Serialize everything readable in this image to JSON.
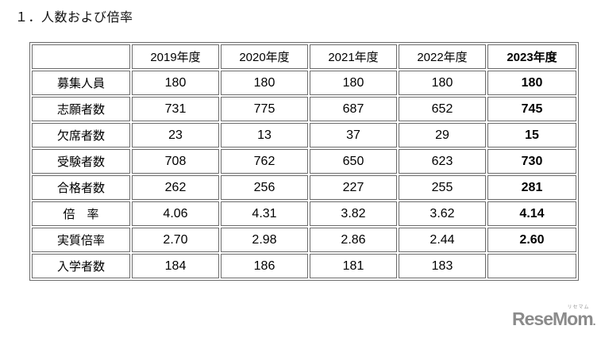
{
  "page": {
    "title": "１．人数および倍率"
  },
  "chart_data": {
    "type": "table",
    "title": "１．人数および倍率",
    "columns": [
      "",
      "2019年度",
      "2020年度",
      "2021年度",
      "2022年度",
      "2023年度"
    ],
    "bold_column": "2023年度",
    "rows": [
      {
        "label": "募集人員",
        "values": [
          "180",
          "180",
          "180",
          "180",
          "180"
        ]
      },
      {
        "label": "志願者数",
        "values": [
          "731",
          "775",
          "687",
          "652",
          "745"
        ]
      },
      {
        "label": "欠席者数",
        "values": [
          "23",
          "13",
          "37",
          "29",
          "15"
        ]
      },
      {
        "label": "受験者数",
        "values": [
          "708",
          "762",
          "650",
          "623",
          "730"
        ]
      },
      {
        "label": "合格者数",
        "values": [
          "262",
          "256",
          "227",
          "255",
          "281"
        ]
      },
      {
        "label": "倍　率",
        "values": [
          "4.06",
          "4.31",
          "3.82",
          "3.62",
          "4.14"
        ]
      },
      {
        "label": "実質倍率",
        "values": [
          "2.70",
          "2.98",
          "2.86",
          "2.44",
          "2.60"
        ]
      },
      {
        "label": "入学者数",
        "values": [
          "184",
          "186",
          "181",
          "183",
          ""
        ]
      }
    ]
  },
  "logo": {
    "text": "ReseMom",
    "kana": "リセマム",
    "dot": ".",
    "color": "#8b8b8b"
  },
  "colors": {
    "background": "#ffffff",
    "table_border": "#6b6b6b",
    "text": "#000000"
  }
}
